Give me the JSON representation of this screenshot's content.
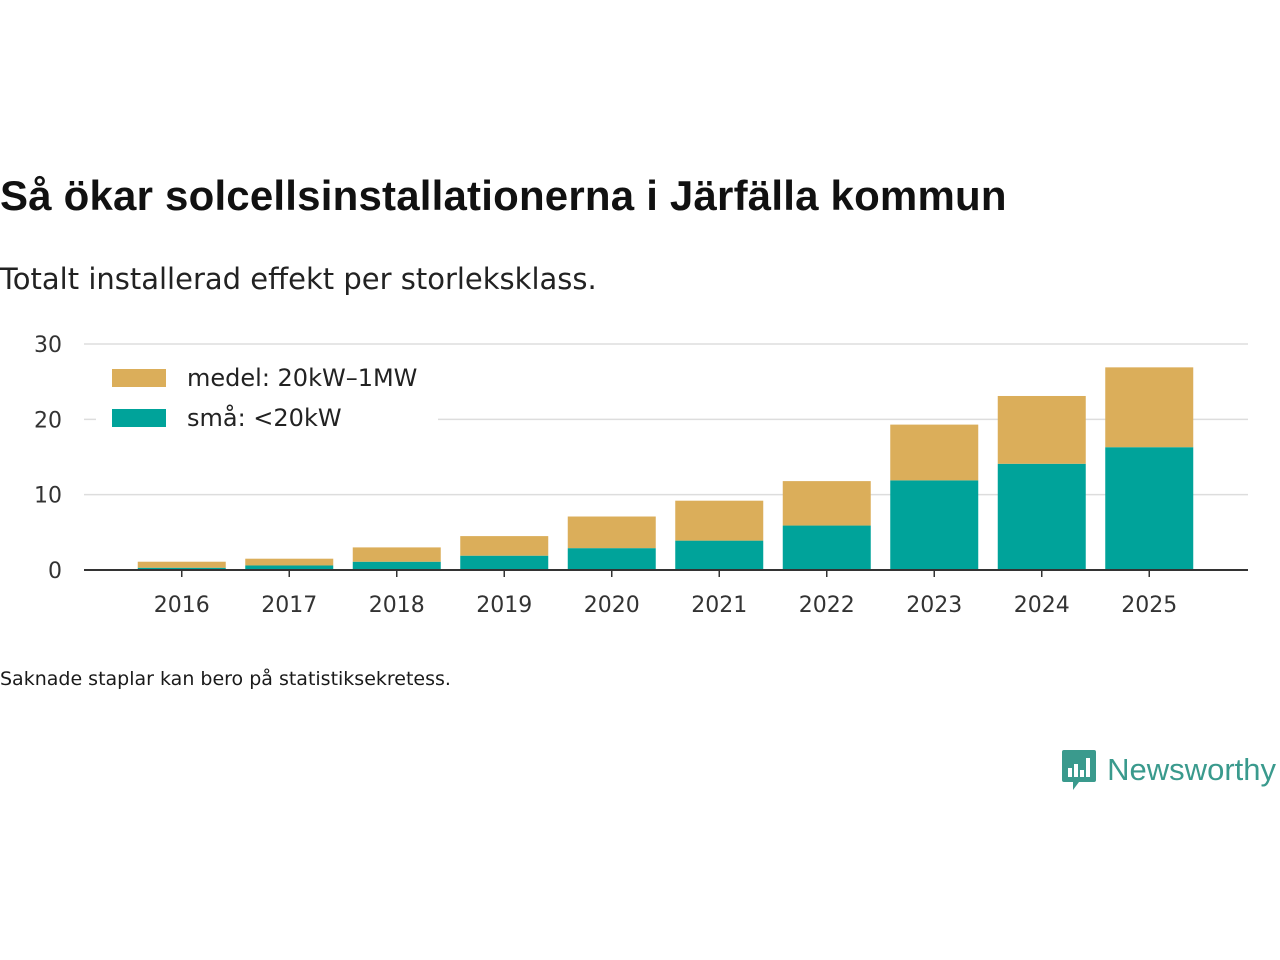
{
  "title": "Så ökar solcellsinstallationerna i Järfälla kommun",
  "subtitle": "Totalt installerad effekt per storleksklass.",
  "note": "Saknade staplar kan bero på statistiksekretess.",
  "brand": {
    "name": "Newsworthy",
    "icon": "newsworthy-logo-icon"
  },
  "colors": {
    "small": "#00a39a",
    "medium": "#dbae5a",
    "grid": "#dddddd",
    "axis": "#333333"
  },
  "chart_data": {
    "type": "bar",
    "stacked": true,
    "title": "Så ökar solcellsinstallationerna i Järfälla kommun",
    "subtitle": "Totalt installerad effekt per storleksklass.",
    "xlabel": "",
    "ylabel": "",
    "ylim": [
      0,
      30
    ],
    "yticks": [
      "0",
      "10",
      "20",
      "30"
    ],
    "categories": [
      "2016",
      "2017",
      "2018",
      "2019",
      "2020",
      "2021",
      "2022",
      "2023",
      "2024",
      "2025"
    ],
    "series": [
      {
        "name": "små: <20kW",
        "color": "#00a39a",
        "values": [
          0.3,
          0.6,
          1.1,
          1.9,
          2.9,
          3.9,
          5.9,
          11.9,
          14.1,
          16.3
        ]
      },
      {
        "name": "medel: 20kW–1MW",
        "color": "#dbae5a",
        "values": [
          0.8,
          0.9,
          1.9,
          2.6,
          4.2,
          5.3,
          5.9,
          7.4,
          9.0,
          10.6
        ]
      }
    ],
    "legend": {
      "position": "top-left",
      "order": [
        "medel: 20kW–1MW",
        "små: <20kW"
      ]
    },
    "grid": true
  }
}
